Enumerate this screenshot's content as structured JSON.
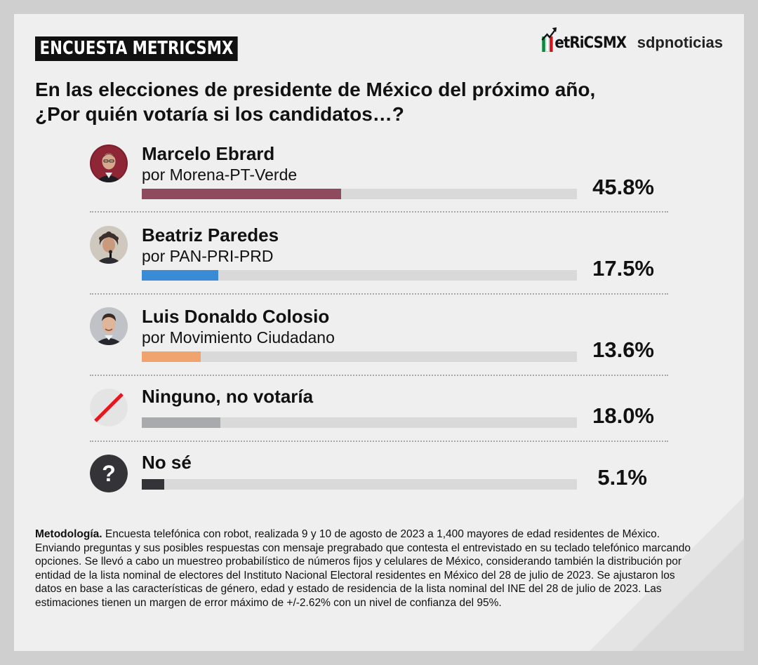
{
  "header": {
    "badge": "ENCUESTA METRICSMX",
    "logo_metrics_text": "etRiCSMX",
    "logo_sdp_text": "sdpnoticias",
    "question_line1": "En las elecciones de presidente de México del próximo año,",
    "question_line2": "¿Por quién votaría si los candidatos…?"
  },
  "colors": {
    "ebrard": "#8f4a5e",
    "paredes": "#3a8bd6",
    "colosio": "#f0a36c",
    "ninguno": "#a9aaae",
    "nose": "#333338",
    "track": "#d9d9d9",
    "mx_green": "#0a8a3a",
    "mx_red": "#d4161c"
  },
  "chart_data": {
    "type": "bar",
    "title": "En las elecciones de presidente de México del próximo año, ¿Por quién votaría si los candidatos…?",
    "categories": [
      "Marcelo Ebrard",
      "Beatriz Paredes",
      "Luis Donaldo Colosio",
      "Ninguno, no votaría",
      "No sé"
    ],
    "values": [
      45.8,
      17.5,
      13.6,
      18.0,
      5.1
    ],
    "value_labels": [
      "45.8%",
      "17.5%",
      "13.6%",
      "18.0%",
      "5.1%"
    ],
    "subtitles": [
      "por Morena-PT-Verde",
      "por PAN-PRI-PRD",
      "por Movimiento Ciudadano",
      "",
      ""
    ],
    "icons": [
      "avatar-marcelo-ebrard",
      "avatar-beatriz-paredes",
      "avatar-luis-donaldo-colosio",
      "slash-icon",
      "question-icon"
    ],
    "xlim": [
      0,
      100
    ],
    "orientation": "horizontal",
    "grid": false
  },
  "methodology": {
    "label": "Metodología.",
    "text": " Encuesta telefónica con robot, realizada 9 y 10 de agosto de 2023 a 1,400 mayores de edad residentes de México. Enviando preguntas y sus posibles respuestas con mensaje pregrabado que contesta el entrevistado en su teclado telefónico marcando opciones. Se llevó a cabo un muestreo probabilístico de números fijos y celulares de México, considerando también la distribución por entidad de la lista nominal de electores del Instituto Nacional Electoral residentes en México del 28 de julio de 2023. Se ajustaron los datos en base a las características de género, edad y estado de residencia de la lista nominal del INE del 28 de julio de 2023. Las estimaciones tienen un margen de error máximo de +/-2.62% con un nivel de confianza del 95%."
  }
}
